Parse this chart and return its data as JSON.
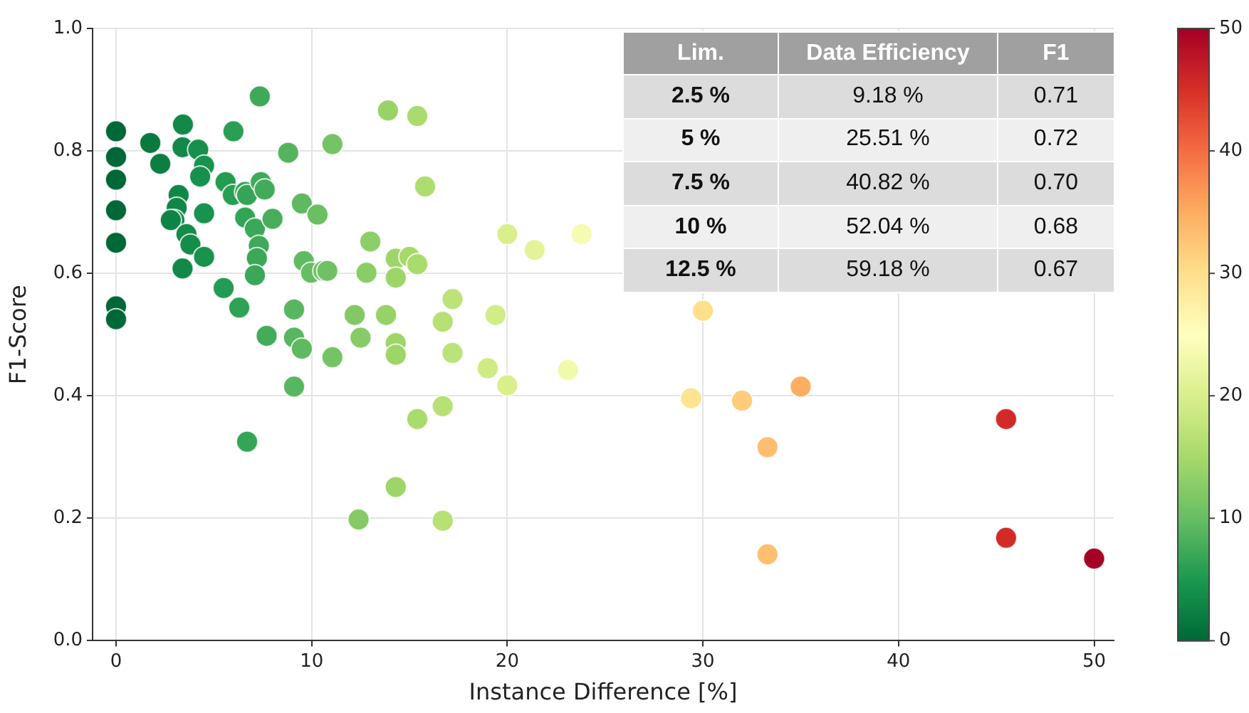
{
  "chart_data": {
    "type": "scatter",
    "xlabel": "Instance Difference [%]",
    "ylabel": "F1-Score",
    "x": [
      0,
      0,
      0,
      0,
      0,
      0,
      0,
      1.75,
      2.26,
      3.42,
      3.4,
      4.2,
      4.5,
      4.3,
      3.2,
      3.1,
      2.98,
      2.8,
      3.6,
      3.8,
      4.5,
      3.4,
      4.5,
      7.35,
      6.0,
      8.8,
      11.06,
      5.6,
      5.97,
      6.6,
      6.7,
      7.4,
      7.6,
      6.6,
      7.1,
      8.0,
      7.3,
      7.2,
      7.1,
      9.5,
      10.3,
      9.6,
      9.97,
      10.6,
      10.8,
      5.5,
      6.3,
      9.1,
      7.7,
      9.1,
      9.5,
      11.06,
      9.1,
      12.2,
      13.8,
      12.5,
      14.3,
      14.3,
      13.0,
      12.8,
      14.3,
      14.3,
      15.0,
      15.4,
      13.9,
      15.4,
      15.8,
      20.0,
      21.4,
      23.8,
      17.2,
      16.7,
      19.4,
      17.2,
      19.0,
      23.1,
      6.7,
      16.7,
      15.4,
      14.3,
      12.4,
      16.7,
      20.0,
      30.0,
      29.4,
      32.0,
      35.0,
      33.3,
      33.3,
      45.5,
      45.5,
      50.0
    ],
    "values": [
      0.832,
      0.79,
      0.753,
      0.703,
      0.65,
      0.546,
      0.525,
      0.813,
      0.779,
      0.843,
      0.806,
      0.802,
      0.776,
      0.758,
      0.728,
      0.707,
      0.687,
      0.687,
      0.664,
      0.647,
      0.698,
      0.608,
      0.627,
      0.889,
      0.832,
      0.797,
      0.811,
      0.749,
      0.728,
      0.733,
      0.728,
      0.749,
      0.737,
      0.691,
      0.673,
      0.689,
      0.645,
      0.625,
      0.597,
      0.714,
      0.696,
      0.62,
      0.601,
      0.604,
      0.604,
      0.576,
      0.544,
      0.541,
      0.498,
      0.495,
      0.477,
      0.463,
      0.415,
      0.532,
      0.532,
      0.495,
      0.486,
      0.467,
      0.652,
      0.601,
      0.624,
      0.593,
      0.627,
      0.615,
      0.866,
      0.857,
      0.742,
      0.664,
      0.638,
      0.664,
      0.558,
      0.521,
      0.532,
      0.47,
      0.445,
      0.442,
      0.325,
      0.383,
      0.362,
      0.251,
      0.198,
      0.196,
      0.417,
      0.539,
      0.396,
      0.392,
      0.415,
      0.316,
      0.141,
      0.362,
      0.168,
      0.134
    ],
    "cvalues": [
      0,
      0,
      0,
      0,
      0,
      0,
      0,
      1.75,
      2.26,
      3.42,
      3.4,
      4.2,
      4.5,
      4.3,
      3.2,
      3.1,
      2.98,
      2.8,
      3.6,
      3.8,
      4.5,
      3.4,
      4.5,
      7.35,
      6.0,
      8.8,
      11.06,
      5.6,
      5.97,
      6.6,
      6.7,
      7.4,
      7.6,
      6.6,
      7.1,
      8.0,
      7.3,
      7.2,
      7.1,
      9.5,
      10.3,
      9.6,
      9.97,
      10.6,
      10.8,
      5.5,
      6.3,
      9.1,
      7.7,
      9.1,
      9.5,
      11.06,
      9.1,
      12.2,
      13.8,
      12.5,
      14.3,
      14.3,
      13.0,
      12.8,
      14.3,
      14.3,
      15.0,
      15.4,
      13.9,
      15.4,
      15.8,
      20.0,
      21.4,
      23.8,
      17.2,
      16.7,
      19.4,
      17.2,
      19.0,
      23.1,
      6.7,
      16.7,
      15.4,
      14.3,
      12.4,
      16.7,
      20.0,
      30.0,
      29.4,
      32.0,
      35.0,
      33.3,
      33.3,
      45.5,
      45.5,
      50.0
    ],
    "xlim": [
      -1.2,
      51
    ],
    "xticks": [
      0,
      10,
      20,
      30,
      40,
      50
    ],
    "ylim": [
      0,
      1
    ],
    "yticks": [
      {
        "value": 0,
        "label": "0.0"
      },
      0.2,
      0.4,
      0.6,
      0.8,
      {
        "value": 1,
        "label": "1.0"
      }
    ],
    "clim": [
      0,
      50
    ],
    "cticks": [
      0,
      10,
      20,
      30,
      40,
      50
    ],
    "grid": true,
    "legend": false,
    "marker": "circle",
    "annotations": [
      "Lim.",
      "Data Efficiency",
      "F1",
      "2.5 %",
      "9.18 %",
      "0.71",
      "5 %",
      "25.51 %",
      "0.72",
      "7.5 %",
      "40.82 %",
      "0.70",
      "10 %",
      "52.04 %",
      "0.68",
      "12.5 %",
      "59.18 %",
      "0.67"
    ]
  }
}
